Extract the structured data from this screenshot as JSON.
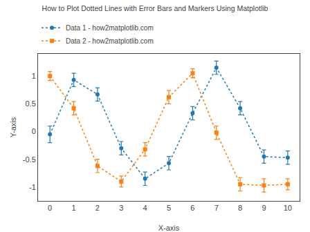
{
  "chart_data": {
    "type": "line",
    "title": "How to Plot Dotted Lines with Error Bars and Markers Using Matplotlib",
    "x_label": "X-axis",
    "y_label": "Y-axis",
    "x": [
      0,
      1,
      2,
      3,
      4,
      5,
      6,
      7,
      8,
      9,
      10
    ],
    "series": [
      {
        "name": "Data 1 - how2matplotlib.com",
        "color": "#1f77b4",
        "marker": "circle",
        "line_style": "dotted",
        "values": [
          -0.05,
          0.93,
          0.67,
          -0.3,
          -0.85,
          -0.57,
          0.33,
          1.15,
          0.42,
          -0.45,
          -0.47
        ],
        "errors": [
          0.15,
          0.12,
          0.12,
          0.12,
          0.12,
          0.12,
          0.12,
          0.12,
          0.12,
          0.12,
          0.12
        ]
      },
      {
        "name": "Data 2 - how2matplotlib.com",
        "color": "#ff7f0e",
        "marker": "square",
        "line_style": "dotted",
        "values": [
          1.0,
          0.42,
          -0.62,
          -0.9,
          -0.32,
          0.62,
          1.05,
          -0.02,
          -0.95,
          -0.97,
          -0.95
        ],
        "errors": [
          0.08,
          0.12,
          0.12,
          0.1,
          0.12,
          0.12,
          0.08,
          0.12,
          0.12,
          0.12,
          0.1
        ]
      }
    ],
    "xlim": [
      -0.5,
      10.5
    ],
    "xticks": [
      0,
      1,
      2,
      3,
      4,
      5,
      6,
      7,
      8,
      9,
      10
    ],
    "ylim": [
      -1.25,
      1.4
    ],
    "yticks": [
      -1,
      -0.5,
      0,
      0.5,
      1
    ],
    "grid": false,
    "legend": "upper left"
  }
}
